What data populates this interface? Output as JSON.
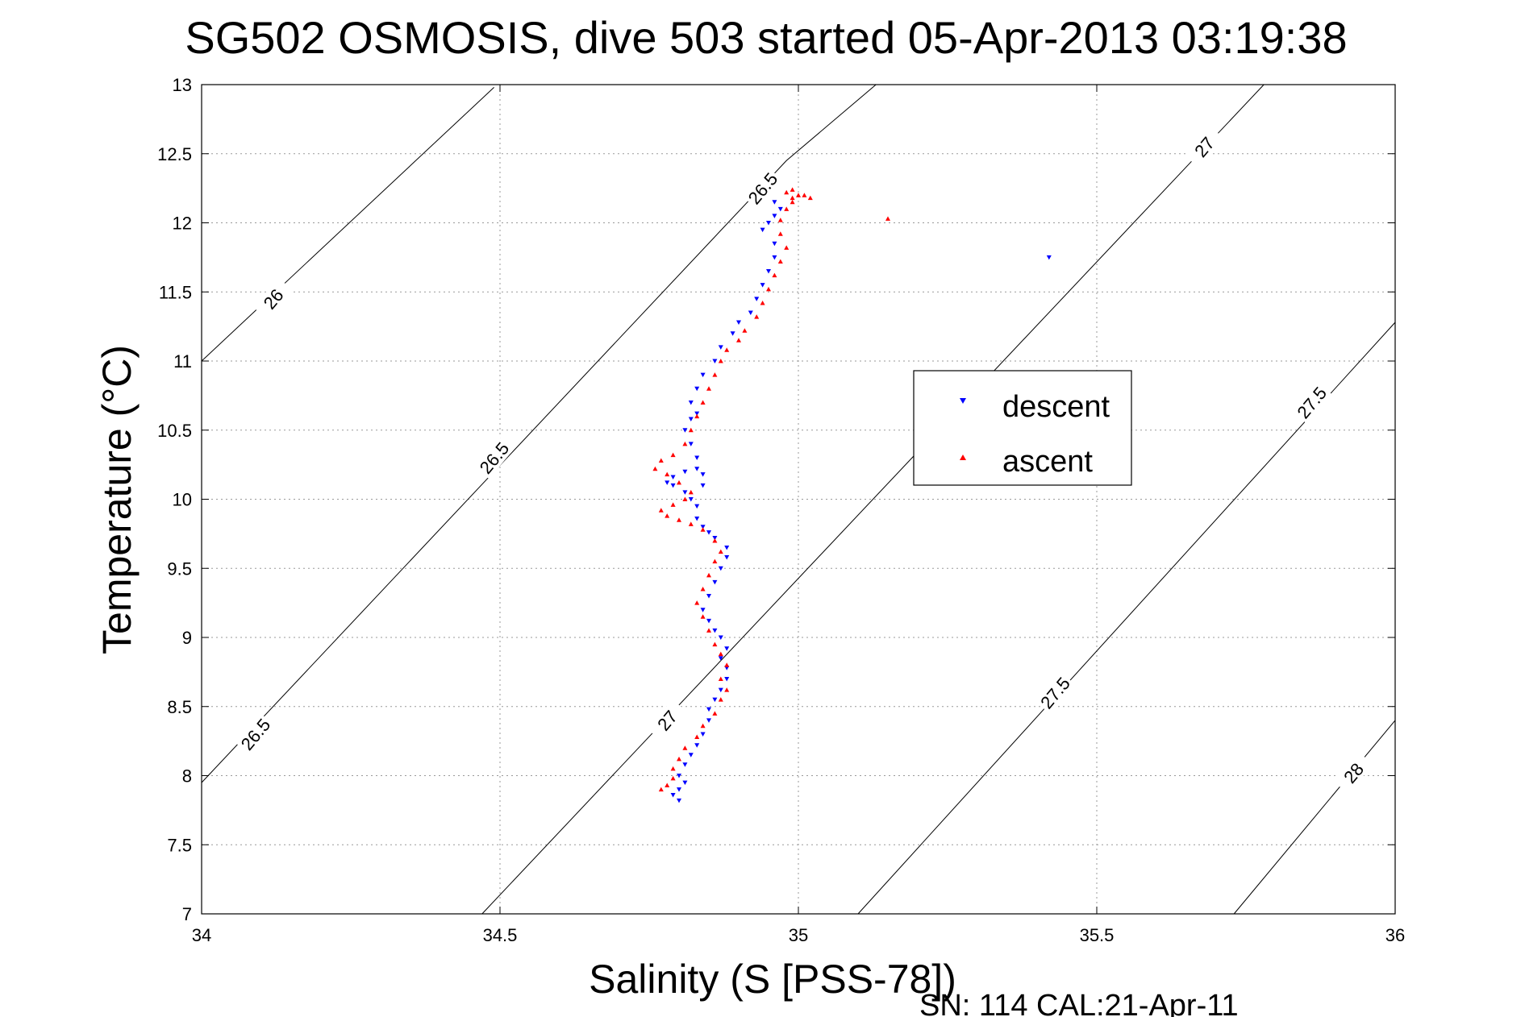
{
  "chart_data": {
    "type": "scatter",
    "title": "SG502 OSMOSIS, dive 503 started 05-Apr-2013 03:19:38",
    "xlabel": "Salinity (S [PSS-78])",
    "ylabel": "Temperature (°C)",
    "xlim": [
      34,
      36
    ],
    "ylim": [
      7,
      13
    ],
    "xticks": [
      "34",
      "34.5",
      "35",
      "35.5",
      "36"
    ],
    "yticks": [
      "7",
      "7.5",
      "8",
      "8.5",
      "9",
      "9.5",
      "10",
      "10.5",
      "11",
      "11.5",
      "12",
      "12.5",
      "13"
    ],
    "grid": true,
    "legend_position": "right-middle",
    "series": [
      {
        "name": "descent",
        "color": "#0000ff",
        "marker": "triangle-down",
        "points": [
          [
            34.8,
            7.82
          ],
          [
            34.79,
            7.86
          ],
          [
            34.8,
            7.9
          ],
          [
            34.81,
            7.95
          ],
          [
            34.8,
            8.0
          ],
          [
            34.81,
            8.08
          ],
          [
            34.82,
            8.15
          ],
          [
            34.83,
            8.22
          ],
          [
            34.84,
            8.3
          ],
          [
            34.85,
            8.4
          ],
          [
            34.85,
            8.48
          ],
          [
            34.86,
            8.55
          ],
          [
            34.87,
            8.62
          ],
          [
            34.88,
            8.7
          ],
          [
            34.88,
            8.78
          ],
          [
            34.87,
            8.85
          ],
          [
            34.88,
            8.92
          ],
          [
            34.87,
            9.0
          ],
          [
            34.86,
            9.05
          ],
          [
            34.85,
            9.12
          ],
          [
            34.84,
            9.2
          ],
          [
            34.85,
            9.3
          ],
          [
            34.86,
            9.4
          ],
          [
            34.87,
            9.5
          ],
          [
            34.88,
            9.58
          ],
          [
            34.88,
            9.65
          ],
          [
            34.86,
            9.72
          ],
          [
            34.85,
            9.76
          ],
          [
            34.84,
            9.8
          ],
          [
            34.83,
            9.86
          ],
          [
            34.83,
            9.95
          ],
          [
            34.82,
            10.0
          ],
          [
            34.81,
            10.05
          ],
          [
            34.79,
            10.1
          ],
          [
            34.78,
            10.12
          ],
          [
            34.79,
            10.16
          ],
          [
            34.81,
            10.2
          ],
          [
            34.83,
            10.22
          ],
          [
            34.84,
            10.18
          ],
          [
            34.84,
            10.1
          ],
          [
            34.83,
            10.3
          ],
          [
            34.82,
            10.4
          ],
          [
            34.81,
            10.5
          ],
          [
            34.82,
            10.58
          ],
          [
            34.83,
            10.62
          ],
          [
            34.82,
            10.7
          ],
          [
            34.83,
            10.8
          ],
          [
            34.84,
            10.9
          ],
          [
            34.86,
            11.0
          ],
          [
            34.87,
            11.1
          ],
          [
            34.89,
            11.2
          ],
          [
            34.9,
            11.28
          ],
          [
            34.92,
            11.35
          ],
          [
            34.93,
            11.45
          ],
          [
            34.94,
            11.55
          ],
          [
            34.95,
            11.65
          ],
          [
            34.96,
            11.75
          ],
          [
            34.96,
            11.85
          ],
          [
            34.94,
            11.95
          ],
          [
            34.95,
            12.0
          ],
          [
            34.96,
            12.05
          ],
          [
            34.97,
            12.1
          ],
          [
            34.96,
            12.15
          ],
          [
            35.42,
            11.75
          ]
        ]
      },
      {
        "name": "ascent",
        "color": "#ff0000",
        "marker": "triangle-up",
        "points": [
          [
            34.77,
            7.9
          ],
          [
            34.78,
            7.93
          ],
          [
            34.79,
            7.98
          ],
          [
            34.79,
            8.05
          ],
          [
            34.8,
            8.12
          ],
          [
            34.81,
            8.2
          ],
          [
            34.83,
            8.28
          ],
          [
            34.84,
            8.36
          ],
          [
            34.86,
            8.45
          ],
          [
            34.87,
            8.55
          ],
          [
            34.88,
            8.62
          ],
          [
            34.87,
            8.7
          ],
          [
            34.88,
            8.8
          ],
          [
            34.87,
            8.88
          ],
          [
            34.86,
            8.95
          ],
          [
            34.85,
            9.05
          ],
          [
            34.84,
            9.15
          ],
          [
            34.83,
            9.25
          ],
          [
            34.84,
            9.35
          ],
          [
            34.85,
            9.45
          ],
          [
            34.86,
            9.55
          ],
          [
            34.87,
            9.62
          ],
          [
            34.86,
            9.7
          ],
          [
            34.84,
            9.78
          ],
          [
            34.82,
            9.82
          ],
          [
            34.8,
            9.85
          ],
          [
            34.78,
            9.88
          ],
          [
            34.77,
            9.92
          ],
          [
            34.79,
            9.96
          ],
          [
            34.81,
            10.0
          ],
          [
            34.82,
            10.05
          ],
          [
            34.8,
            10.12
          ],
          [
            34.78,
            10.18
          ],
          [
            34.76,
            10.22
          ],
          [
            34.77,
            10.28
          ],
          [
            34.79,
            10.32
          ],
          [
            34.81,
            10.4
          ],
          [
            34.82,
            10.5
          ],
          [
            34.83,
            10.6
          ],
          [
            34.84,
            10.7
          ],
          [
            34.85,
            10.8
          ],
          [
            34.86,
            10.9
          ],
          [
            34.87,
            11.0
          ],
          [
            34.88,
            11.08
          ],
          [
            34.9,
            11.15
          ],
          [
            34.91,
            11.22
          ],
          [
            34.93,
            11.32
          ],
          [
            34.94,
            11.42
          ],
          [
            34.95,
            11.52
          ],
          [
            34.96,
            11.62
          ],
          [
            34.97,
            11.72
          ],
          [
            34.98,
            11.82
          ],
          [
            34.97,
            11.92
          ],
          [
            34.97,
            12.02
          ],
          [
            34.98,
            12.1
          ],
          [
            34.99,
            12.15
          ],
          [
            34.99,
            12.18
          ],
          [
            35.0,
            12.2
          ],
          [
            34.98,
            12.22
          ],
          [
            34.99,
            12.24
          ],
          [
            35.01,
            12.2
          ],
          [
            35.02,
            12.18
          ],
          [
            35.15,
            12.03
          ]
        ]
      }
    ],
    "density_contours": [
      {
        "value": "26",
        "labels": [
          "26"
        ]
      },
      {
        "value": "26.5",
        "labels": [
          "26.5",
          "26.5",
          "26.5"
        ]
      },
      {
        "value": "27",
        "labels": [
          "27",
          "27"
        ]
      },
      {
        "value": "27.5",
        "labels": [
          "27.5",
          "27.5"
        ]
      },
      {
        "value": "28",
        "labels": [
          "28"
        ]
      }
    ]
  },
  "legend": {
    "descent_label": "descent",
    "ascent_label": "ascent"
  },
  "footer": "SN: 114  CAL:21-Apr-11"
}
